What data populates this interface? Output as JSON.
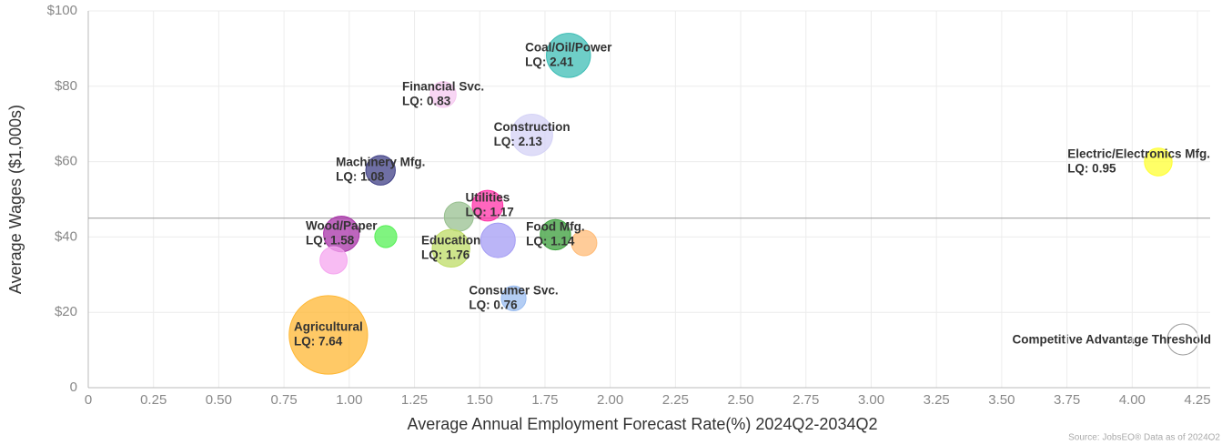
{
  "chart_data": {
    "type": "bubble",
    "x_label": "Average Annual Employment Forecast Rate(%) 2024Q2-2034Q2",
    "y_label": "Average Wages ($1,000s)",
    "threshold": 45,
    "threshold_label": "Competitive Advantage Threshold",
    "source": "Source: JobsEQ® Data as of 2024Q2",
    "grid": true,
    "xlim": [
      0,
      4.25
    ],
    "xticks": [
      0,
      0.25,
      {
        "value": 0.5,
        "label": "0.50"
      },
      0.75,
      {
        "value": 1,
        "label": "1.00"
      },
      1.25,
      {
        "value": 1.5,
        "label": "1.50"
      },
      1.75,
      {
        "value": 2,
        "label": "2.00"
      },
      2.25,
      {
        "value": 2.5,
        "label": "2.50"
      },
      2.75,
      {
        "value": 3,
        "label": "3.00"
      },
      3.25,
      {
        "value": 3.5,
        "label": "3.50"
      },
      3.75,
      {
        "value": 4,
        "label": "4.00"
      },
      4.25
    ],
    "ylim": [
      0,
      100
    ],
    "yticks": [
      0,
      {
        "value": 20,
        "label": "$20"
      },
      {
        "value": 40,
        "label": "$40"
      },
      {
        "value": 60,
        "label": "$60"
      },
      {
        "value": 80,
        "label": "$80"
      },
      {
        "value": 100,
        "label": "$100"
      }
    ],
    "labels": [
      "Agricultural",
      "Coal/Oil/Power",
      "Financial Svc.",
      "Construction",
      "Machinery Mfg.",
      "Electric/Electronics Mfg.",
      "Utilities",
      null,
      "Wood/Paper",
      null,
      null,
      "Education",
      null,
      "Food Mfg.",
      null,
      "Consumer Svc."
    ],
    "x": [
      0.92,
      1.84,
      1.36,
      1.7,
      1.12,
      4.1,
      1.53,
      1.42,
      0.97,
      1.14,
      0.94,
      1.39,
      1.57,
      1.79,
      1.9,
      1.63
    ],
    "y": [
      14,
      88.2,
      77.8,
      67.1,
      57.7,
      59.9,
      48.3,
      45.4,
      40.8,
      40.1,
      33.8,
      37,
      39.1,
      40.6,
      38.4,
      23.7
    ],
    "sizes": [
      7.64,
      2.41,
      0.83,
      2.13,
      1.08,
      0.95,
      1.17,
      1.05,
      1.58,
      0.6,
      0.92,
      1.76,
      1.48,
      1.14,
      0.8,
      0.76
    ],
    "size_labels": [
      "LQ: 7.64",
      "LQ: 2.41",
      "LQ: 0.83",
      "LQ: 2.13",
      "LQ: 1.08",
      "LQ: 0.95",
      "LQ: 1.17",
      null,
      "LQ: 1.58",
      null,
      null,
      "LQ: 1.76",
      null,
      "LQ: 1.14",
      null,
      "LQ: 0.76"
    ],
    "colors": [
      "#ffb733",
      "#3dbdb5",
      "#f6c8f0",
      "#d4d2f6",
      "#3f3f85",
      "#ffff33",
      "#ff33a8",
      "#98c090",
      "#a833a8",
      "#55f055",
      "#f5a6ef",
      "#bedc66",
      "#a49cf4",
      "#3a9e3a",
      "#ffbb77",
      "#9abcf0"
    ]
  }
}
